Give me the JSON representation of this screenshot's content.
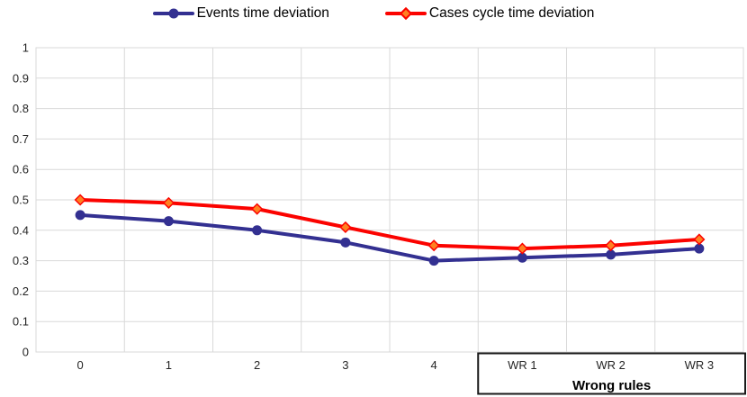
{
  "legend": {
    "position": "top"
  },
  "chart_data": {
    "type": "line",
    "categories": [
      "0",
      "1",
      "2",
      "3",
      "4",
      "WR 1",
      "WR 2",
      "WR 3"
    ],
    "series": [
      {
        "key": "events",
        "name": "Events time deviation",
        "color": "#333091",
        "marker": "circle",
        "marker_fill": "#333091",
        "values": [
          0.45,
          0.43,
          0.4,
          0.36,
          0.3,
          0.31,
          0.32,
          0.34
        ]
      },
      {
        "key": "cases",
        "name": "Cases cycle time deviation",
        "color": "#FB0300",
        "marker": "diamond",
        "marker_fill": "#FF8021",
        "values": [
          0.5,
          0.49,
          0.47,
          0.41,
          0.35,
          0.34,
          0.35,
          0.37
        ]
      }
    ],
    "ylim": [
      0,
      1
    ],
    "y_ticks": [
      "0",
      "0.1",
      "0.2",
      "0.3",
      "0.4",
      "0.5",
      "0.6",
      "0.7",
      "0.8",
      "0.9",
      "1"
    ],
    "grid": true,
    "gridline_color": "#D9D9D9",
    "legend_position": "top",
    "annotation_box": {
      "label": "Wrong rules",
      "from_category": "WR 1",
      "to_category": "WR 3",
      "from_index": 5,
      "border_color": "#1A1A1A"
    }
  }
}
